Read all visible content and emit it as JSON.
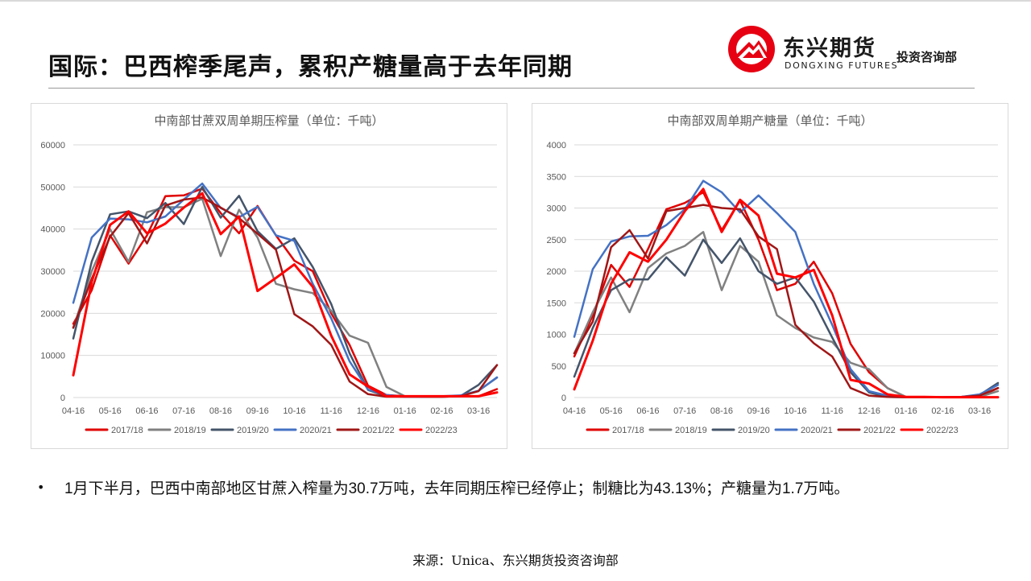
{
  "page": {
    "title": "国际：巴西榨季尾声，累积产糖量高于去年同期",
    "logo": {
      "name_cn": "东兴期货",
      "name_en": "DONGXING FUTURES",
      "department": "投资咨询部",
      "brand_color": "#e60012"
    },
    "note": "1月下半月，巴西中南部地区甘蔗入榨量为30.7万吨，去年同期压榨已经停止；制糖比为43.13%；产糖量为1.7万吨。",
    "source": "来源：Unica、东兴期货投资咨询部"
  },
  "chart_data": [
    {
      "type": "line",
      "title": "中南部甘蔗双周单期压榨量（单位：千吨）",
      "xlabel": "",
      "ylabel": "",
      "ylim": [
        0,
        60000
      ],
      "yticks": [
        "0",
        "10000",
        "20000",
        "30000",
        "40000",
        "50000",
        "60000"
      ],
      "x_tick_labels": [
        "04-16",
        "05-16",
        "06-16",
        "07-16",
        "08-16",
        "09-16",
        "10-16",
        "11-16",
        "12-16",
        "01-16",
        "02-16",
        "03-16"
      ],
      "period_count": 24,
      "grid": true,
      "legend": "bottom",
      "series": [
        {
          "name": "2017/18",
          "color": "#e00000",
          "values": [
            17500,
            25500,
            38500,
            31800,
            38500,
            47800,
            48000,
            49600,
            43800,
            39000,
            45500,
            38500,
            32500,
            30000,
            20000,
            12500,
            2800,
            600,
            300,
            200,
            200,
            300,
            300,
            2000
          ]
        },
        {
          "name": "2018/19",
          "color": "#808080",
          "values": [
            16500,
            30000,
            40000,
            32200,
            44000,
            45200,
            45200,
            47200,
            33600,
            44600,
            38000,
            27000,
            25700,
            24800,
            20600,
            14700,
            13000,
            2500,
            300,
            200,
            200,
            300,
            1600,
            4700
          ]
        },
        {
          "name": "2019/20",
          "color": "#44546a",
          "values": [
            14000,
            32300,
            43500,
            44200,
            42600,
            46200,
            41200,
            50000,
            42700,
            47900,
            39500,
            35300,
            37800,
            31000,
            22200,
            10500,
            1800,
            300,
            200,
            200,
            200,
            300,
            3000,
            7700
          ]
        },
        {
          "name": "2020/21",
          "color": "#4472c4",
          "values": [
            22500,
            38000,
            42500,
            42300,
            41600,
            43000,
            47000,
            50800,
            45000,
            42800,
            45300,
            38500,
            37200,
            27000,
            18800,
            8600,
            1900,
            600,
            200,
            200,
            300,
            500,
            1600,
            4800
          ]
        },
        {
          "name": "2021/22",
          "color": "#a01616",
          "values": [
            16600,
            28200,
            38200,
            43800,
            36600,
            45600,
            47000,
            47500,
            45100,
            42600,
            38900,
            35100,
            19800,
            16900,
            12500,
            3800,
            800,
            200,
            200,
            200,
            200,
            300,
            1500,
            7700
          ]
        },
        {
          "name": "2022/23",
          "color": "#ff0000",
          "values": [
            5300,
            27500,
            41000,
            44200,
            39000,
            41300,
            45100,
            48500,
            38800,
            43000,
            25300,
            28400,
            31600,
            26300,
            14700,
            5500,
            2600,
            300,
            300,
            300,
            300,
            300,
            300,
            1200
          ]
        }
      ]
    },
    {
      "type": "line",
      "title": "中南部双周单期产糖量（单位：千吨）",
      "xlabel": "",
      "ylabel": "",
      "ylim": [
        0,
        4000
      ],
      "yticks": [
        "0",
        "500",
        "1000",
        "1500",
        "2000",
        "2500",
        "3000",
        "3500",
        "4000"
      ],
      "x_tick_labels": [
        "04-16",
        "05-16",
        "06-16",
        "07-16",
        "08-16",
        "09-16",
        "10-16",
        "11-16",
        "12-16",
        "01-16",
        "02-16",
        "03-16"
      ],
      "period_count": 24,
      "grid": true,
      "legend": "bottom",
      "series": [
        {
          "name": "2017/18",
          "color": "#e00000",
          "values": [
            650,
            1300,
            2100,
            1750,
            2350,
            2980,
            3080,
            3250,
            2650,
            3120,
            2500,
            1700,
            1800,
            2150,
            1650,
            850,
            400,
            150,
            10,
            5,
            5,
            5,
            10,
            150
          ]
        },
        {
          "name": "2018/19",
          "color": "#808080",
          "values": [
            700,
            1350,
            1900,
            1350,
            2050,
            2280,
            2400,
            2620,
            1700,
            2400,
            2150,
            1300,
            1100,
            950,
            880,
            550,
            450,
            150,
            10,
            5,
            5,
            5,
            10,
            100
          ]
        },
        {
          "name": "2019/20",
          "color": "#44546a",
          "values": [
            330,
            1100,
            1700,
            1870,
            1870,
            2220,
            1930,
            2500,
            2130,
            2520,
            2000,
            1800,
            1900,
            1520,
            950,
            400,
            80,
            10,
            5,
            5,
            5,
            10,
            40,
            230
          ]
        },
        {
          "name": "2020/21",
          "color": "#4472c4",
          "values": [
            960,
            2030,
            2470,
            2550,
            2560,
            2730,
            2980,
            3430,
            3250,
            2930,
            3200,
            2920,
            2620,
            1800,
            1150,
            450,
            100,
            30,
            10,
            5,
            5,
            10,
            50,
            200
          ]
        },
        {
          "name": "2021/22",
          "color": "#a01616",
          "values": [
            700,
            1200,
            2380,
            2650,
            2200,
            2950,
            3000,
            3050,
            3000,
            2980,
            2550,
            2350,
            1150,
            860,
            650,
            150,
            30,
            10,
            5,
            5,
            5,
            10,
            30,
            150
          ]
        },
        {
          "name": "2022/23",
          "color": "#ff0000",
          "values": [
            130,
            900,
            1800,
            2300,
            2150,
            2500,
            2950,
            3300,
            2620,
            3130,
            2880,
            1960,
            1900,
            2020,
            1300,
            280,
            220,
            50,
            10,
            10,
            5,
            5,
            5,
            5
          ]
        }
      ]
    }
  ]
}
